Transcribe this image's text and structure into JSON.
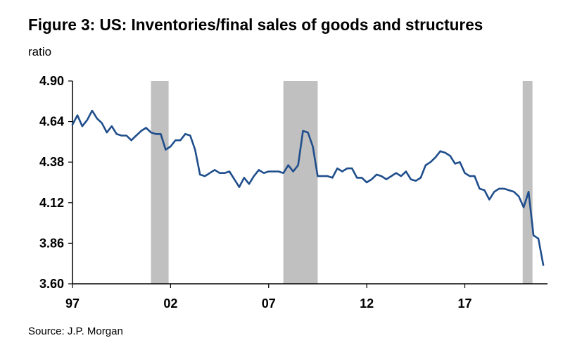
{
  "title": "Figure 3: US: Inventories/final sales of goods and structures",
  "unit_label": "ratio",
  "source": "Source: J.P. Morgan",
  "colors": {
    "line": "#1f4e8c",
    "recession": "#c0c0c0",
    "axis": "#000000"
  },
  "chart_data": {
    "type": "line",
    "title": "Figure 3: US: Inventories/final sales of goods and structures",
    "xlabel": "",
    "ylabel": "ratio",
    "ylim": [
      3.6,
      4.9
    ],
    "xlim": [
      1997.0,
      2021.0
    ],
    "y_ticks": [
      "4.90",
      "4.64",
      "4.38",
      "4.12",
      "3.86",
      "3.60"
    ],
    "y_tick_values": [
      4.9,
      4.64,
      4.38,
      4.12,
      3.86,
      3.6
    ],
    "x_ticks": [
      "97",
      "02",
      "07",
      "12",
      "17"
    ],
    "x_tick_values": [
      1997.0,
      2002.0,
      2007.0,
      2012.0,
      2017.0
    ],
    "grid": false,
    "recession_periods": [
      [
        2001.0,
        2001.9
      ],
      [
        2007.75,
        2009.5
      ],
      [
        2019.95,
        2020.45
      ]
    ],
    "series": [
      {
        "x": [
          1997.0,
          1997.25,
          1997.5,
          1997.75,
          1998.0,
          1998.25,
          1998.5,
          1998.75,
          1999.0,
          1999.25,
          1999.5,
          1999.75,
          2000.0,
          2000.25,
          2000.5,
          2000.75,
          2001.0,
          2001.25,
          2001.5,
          2001.75,
          2002.0,
          2002.25,
          2002.5,
          2002.75,
          2003.0,
          2003.25,
          2003.5,
          2003.75,
          2004.0,
          2004.25,
          2004.5,
          2004.75,
          2005.0,
          2005.25,
          2005.5,
          2005.75,
          2006.0,
          2006.25,
          2006.5,
          2006.75,
          2007.0,
          2007.25,
          2007.5,
          2007.75,
          2008.0,
          2008.25,
          2008.5,
          2008.75,
          2009.0,
          2009.25,
          2009.5,
          2009.75,
          2010.0,
          2010.25,
          2010.5,
          2010.75,
          2011.0,
          2011.25,
          2011.5,
          2011.75,
          2012.0,
          2012.25,
          2012.5,
          2012.75,
          2013.0,
          2013.25,
          2013.5,
          2013.75,
          2014.0,
          2014.25,
          2014.5,
          2014.75,
          2015.0,
          2015.25,
          2015.5,
          2015.75,
          2016.0,
          2016.25,
          2016.5,
          2016.75,
          2017.0,
          2017.25,
          2017.5,
          2017.75,
          2018.0,
          2018.25,
          2018.5,
          2018.75,
          2019.0,
          2019.25,
          2019.5,
          2019.75,
          2020.0,
          2020.25,
          2020.5,
          2020.75,
          2021.0
        ],
        "values": [
          4.62,
          4.68,
          4.61,
          4.65,
          4.71,
          4.66,
          4.63,
          4.57,
          4.61,
          4.56,
          4.55,
          4.55,
          4.52,
          4.55,
          4.58,
          4.6,
          4.57,
          4.56,
          4.56,
          4.46,
          4.48,
          4.52,
          4.52,
          4.56,
          4.55,
          4.46,
          4.3,
          4.29,
          4.31,
          4.33,
          4.31,
          4.31,
          4.32,
          4.27,
          4.22,
          4.28,
          4.24,
          4.29,
          4.33,
          4.31,
          4.32,
          4.32,
          4.32,
          4.31,
          4.36,
          4.32,
          4.36,
          4.58,
          4.57,
          4.48,
          4.29,
          4.29,
          4.29,
          4.28,
          4.34,
          4.32,
          4.34,
          4.34,
          4.28,
          4.28,
          4.25,
          4.27,
          4.3,
          4.29,
          4.27,
          4.29,
          4.31,
          4.29,
          4.32,
          4.27,
          4.26,
          4.28,
          4.36,
          4.38,
          4.41,
          4.45,
          4.44,
          4.42,
          4.37,
          4.38,
          4.31,
          4.29,
          4.29,
          4.21,
          4.2,
          4.14,
          4.19,
          4.21,
          4.21,
          4.2,
          4.19,
          4.16,
          4.09,
          4.19,
          3.91,
          3.89,
          3.72
        ]
      }
    ]
  }
}
